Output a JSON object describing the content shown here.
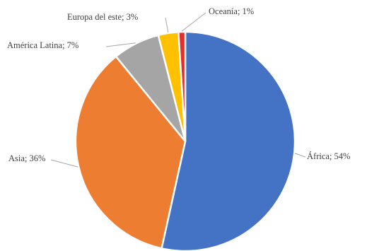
{
  "chart_data": {
    "type": "pie",
    "categories": [
      "África",
      "Asia",
      "América Latina",
      "Europa del este",
      "Oceanía"
    ],
    "values": [
      54,
      36,
      7,
      3,
      1
    ],
    "labels": [
      "África; 54%",
      "Asia; 36%",
      "América Latina; 7%",
      "Europa del este; 3%",
      "Oceanía; 1%"
    ],
    "colors": [
      "#4472c4",
      "#ed7d31",
      "#a5a5a5",
      "#ffc000",
      "#e32d2d"
    ],
    "start": "top",
    "direction": "clockwise",
    "legend": "none",
    "title": ""
  }
}
